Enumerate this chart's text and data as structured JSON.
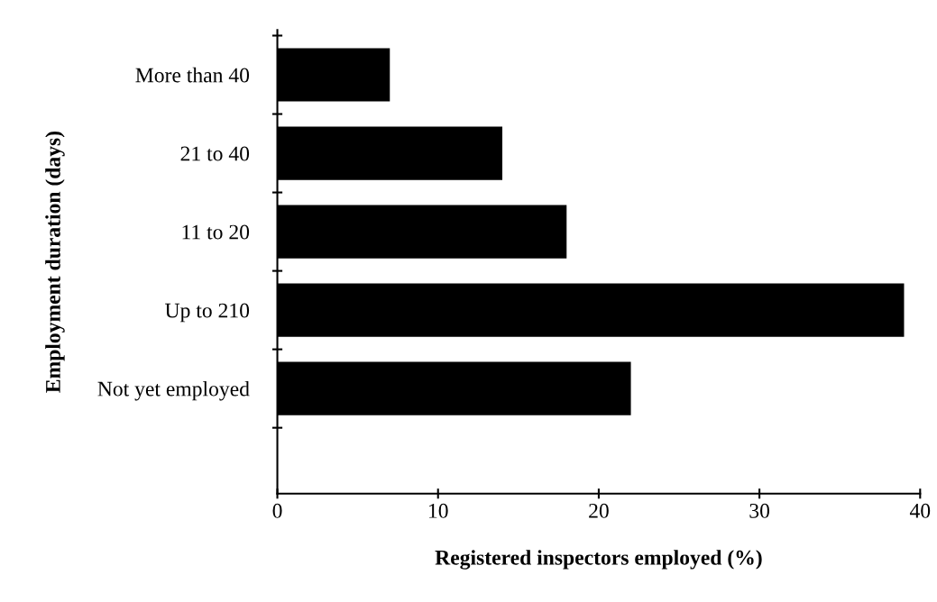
{
  "chart_data": {
    "type": "bar",
    "orientation": "horizontal",
    "categories": [
      "More than 40",
      "21 to 40",
      "11 to 20",
      "Up to 210",
      "Not yet employed"
    ],
    "values": [
      7,
      14,
      18,
      39,
      22
    ],
    "color": "#000000",
    "xlim": [
      0,
      40
    ],
    "xticks": [
      0,
      10,
      20,
      30,
      40
    ],
    "xlabel": "Registered inspectors employed (%)",
    "ylabel": "Employment duration (days)",
    "grid": false,
    "legend": false
  }
}
